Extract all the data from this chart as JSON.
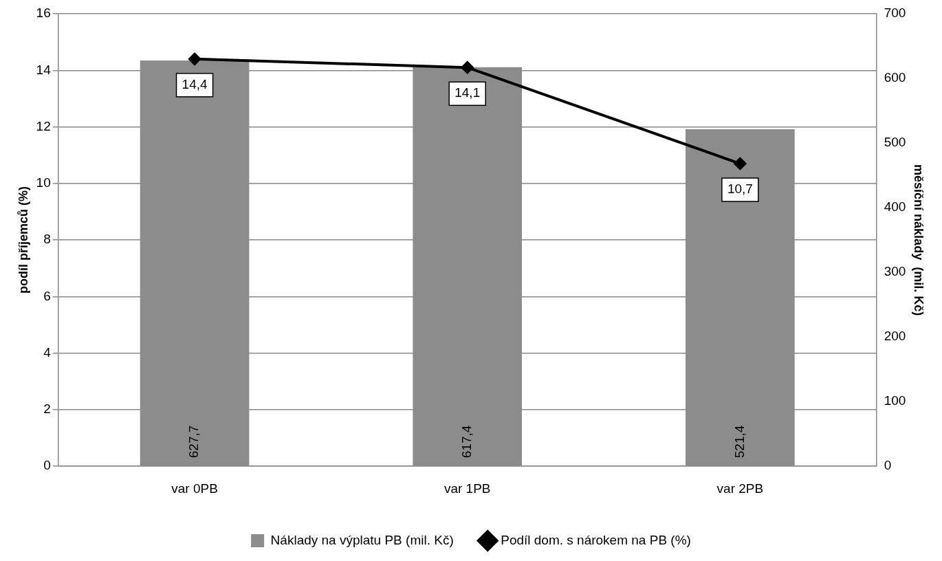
{
  "chart_data": {
    "type": "bar",
    "categories": [
      "var 0PB",
      "var 1PB",
      "var 2PB"
    ],
    "series": [
      {
        "name": "Náklady na výplatu PB (mil. Kč)",
        "axis": "y2",
        "color": "#8c8c8c",
        "values": [
          627.7,
          617.4,
          521.4
        ],
        "value_labels": [
          "627,7",
          "617,4",
          "521,4"
        ]
      },
      {
        "name": "Podíl dom. s nárokem na PB (%)",
        "type": "line",
        "color": "#000000",
        "marker": "diamond",
        "values": [
          14.4,
          14.1,
          10.7
        ],
        "value_labels": [
          "14,4",
          "14,1",
          "10,7"
        ]
      }
    ],
    "ylabel": "podíl příjemců (%)",
    "y2label": "měsíční náklady  (mil. Kč)",
    "ylim": [
      0,
      16
    ],
    "yticks": [
      0,
      2,
      4,
      6,
      8,
      10,
      12,
      14,
      16
    ],
    "y2lim": [
      0,
      700
    ],
    "y2ticks": [
      0,
      100,
      200,
      300,
      400,
      500,
      600,
      700
    ],
    "grid": "y",
    "legend": "bottom"
  }
}
